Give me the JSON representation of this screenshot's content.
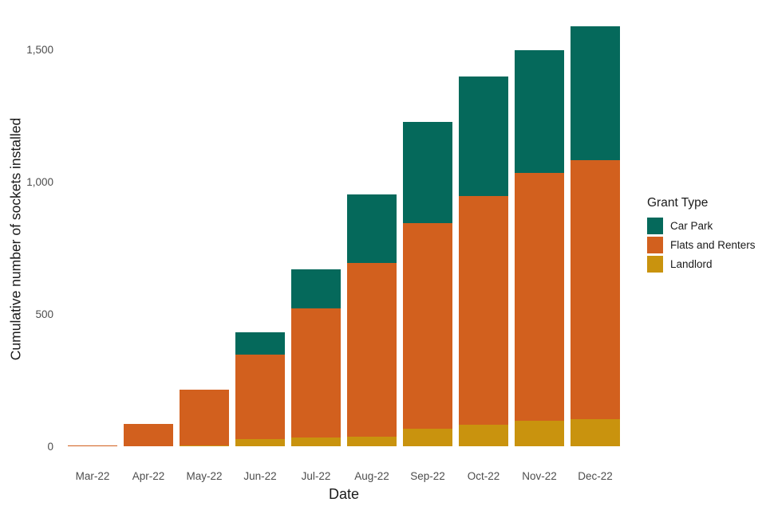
{
  "chart_data": {
    "type": "bar",
    "stacked": true,
    "title": "",
    "xlabel": "Date",
    "ylabel": "Cumulative number of sockets installed",
    "categories": [
      "Mar-22",
      "Apr-22",
      "May-22",
      "Jun-22",
      "Jul-22",
      "Aug-22",
      "Sep-22",
      "Oct-22",
      "Nov-22",
      "Dec-22"
    ],
    "series": [
      {
        "name": "Car Park",
        "color": "#05695B",
        "values": [
          0,
          0,
          0,
          83,
          147,
          259,
          382,
          452,
          463,
          506
        ]
      },
      {
        "name": "Flats and Renters",
        "color": "#D2601E",
        "values": [
          5,
          87,
          209,
          319,
          488,
          657,
          778,
          865,
          938,
          979
        ]
      },
      {
        "name": "Landlord",
        "color": "#C9930E",
        "values": [
          0,
          0,
          5,
          29,
          34,
          37,
          67,
          82,
          97,
          104
        ]
      }
    ],
    "stack_order_bottom_to_top": [
      "Landlord",
      "Flats and Renters",
      "Car Park"
    ],
    "totals": [
      5,
      87,
      214,
      431,
      669,
      953,
      1227,
      1399,
      1498,
      1589
    ],
    "ylim": [
      0,
      1589
    ],
    "yticks": [
      {
        "value": 0,
        "label": "0"
      },
      {
        "value": 500,
        "label": "500"
      },
      {
        "value": 1000,
        "label": "1,000"
      },
      {
        "value": 1500,
        "label": "1,500"
      }
    ],
    "grid": false,
    "legend_position": "right"
  },
  "axes": {
    "x_title": "Date",
    "y_title": "Cumulative number of sockets installed"
  },
  "legend": {
    "title": "Grant Type",
    "items": [
      {
        "label": "Car Park",
        "color": "#05695B"
      },
      {
        "label": "Flats and Renters",
        "color": "#D2601E"
      },
      {
        "label": "Landlord",
        "color": "#C9930E"
      }
    ]
  }
}
